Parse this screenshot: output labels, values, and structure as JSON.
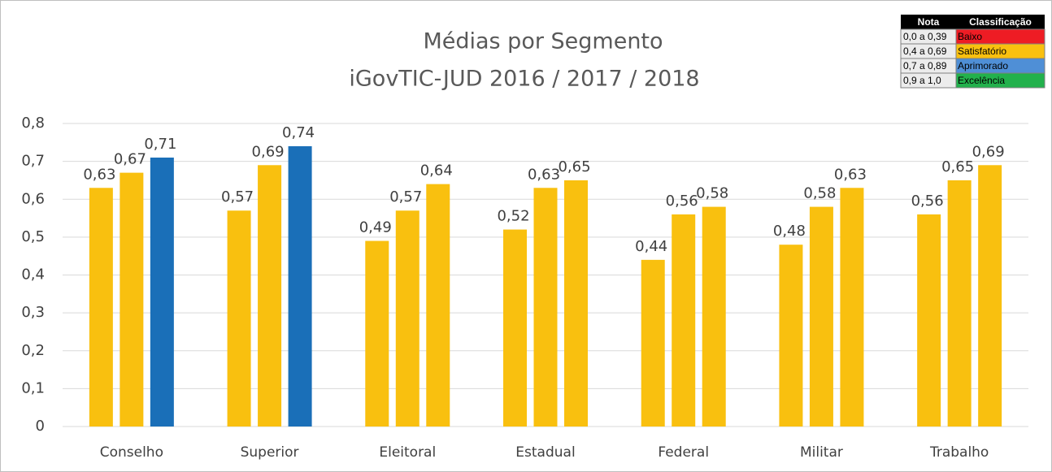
{
  "chart_data": {
    "type": "bar",
    "title": [
      "Médias por Segmento",
      "iGovTIC-JUD 2016 / 2017 / 2018"
    ],
    "categories": [
      "Conselho",
      "Superior",
      "Eleitoral",
      "Estadual",
      "Federal",
      "Militar",
      "Trabalho"
    ],
    "series": [
      {
        "colors": [
          "#f9c00f",
          "#f9c00f",
          "#f9c00f",
          "#f9c00f",
          "#f9c00f",
          "#f9c00f",
          "#f9c00f"
        ],
        "values": [
          0.63,
          0.57,
          0.49,
          0.52,
          0.44,
          0.48,
          0.56
        ],
        "value_labels": [
          "0,63",
          "0,57",
          "0,49",
          "0,52",
          "0,44",
          "0,48",
          "0,56"
        ]
      },
      {
        "colors": [
          "#f9c00f",
          "#f9c00f",
          "#f9c00f",
          "#f9c00f",
          "#f9c00f",
          "#f9c00f",
          "#f9c00f"
        ],
        "values": [
          0.67,
          0.69,
          0.57,
          0.63,
          0.56,
          0.58,
          0.65
        ],
        "value_labels": [
          "0,67",
          "0,69",
          "0,57",
          "0,63",
          "0,56",
          "0,58",
          "0,65"
        ]
      },
      {
        "colors": [
          "#1a6fb8",
          "#1a6fb8",
          "#f9c00f",
          "#f9c00f",
          "#f9c00f",
          "#f9c00f",
          "#f9c00f"
        ],
        "values": [
          0.71,
          0.74,
          0.64,
          0.65,
          0.58,
          0.63,
          0.69
        ],
        "value_labels": [
          "0,71",
          "0,74",
          "0,64",
          "0,65",
          "0,58",
          "0,63",
          "0,69"
        ]
      }
    ],
    "ylim": [
      0,
      0.8
    ],
    "yticks": [
      0,
      {
        "value": 0.1,
        "label": "0,1"
      },
      {
        "value": 0.2,
        "label": "0,2"
      },
      {
        "value": 0.3,
        "label": "0,3"
      },
      {
        "value": 0.4,
        "label": "0,4"
      },
      {
        "value": 0.5,
        "label": "0,5"
      },
      {
        "value": 0.6,
        "label": "0,6"
      },
      {
        "value": 0.7,
        "label": "0,7"
      },
      {
        "value": 0.8,
        "label": "0,8"
      }
    ],
    "grid": true,
    "classification_table": {
      "header": [
        "Nota",
        "Classificação"
      ],
      "rows": [
        {
          "range": "0,0 a 0,39",
          "label": "Baixo",
          "color": "#ee1c24"
        },
        {
          "range": "0,4 a 0,69",
          "label": "Satisfatório",
          "color": "#f9c00f"
        },
        {
          "range": "0,7 a 0,89",
          "label": "Aprimorado",
          "color": "#4f8fd6"
        },
        {
          "range": "0,9 a 1,0",
          "label": "Excelência",
          "color": "#22b14c"
        }
      ]
    }
  }
}
